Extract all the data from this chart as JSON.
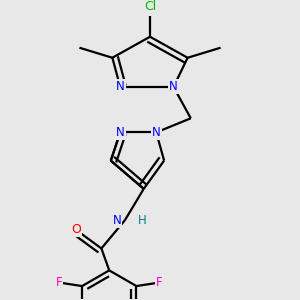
{
  "background_color": "#e8e8e8",
  "atoms": {
    "Cl": {
      "color": "#00bb00"
    },
    "N": {
      "color": "#0000ff"
    },
    "O": {
      "color": "#ff0000"
    },
    "F": {
      "color": "#ff00cc"
    },
    "H": {
      "color": "#008080"
    }
  },
  "bond_color": "#000000",
  "lw": 1.6,
  "fs": 8.5
}
